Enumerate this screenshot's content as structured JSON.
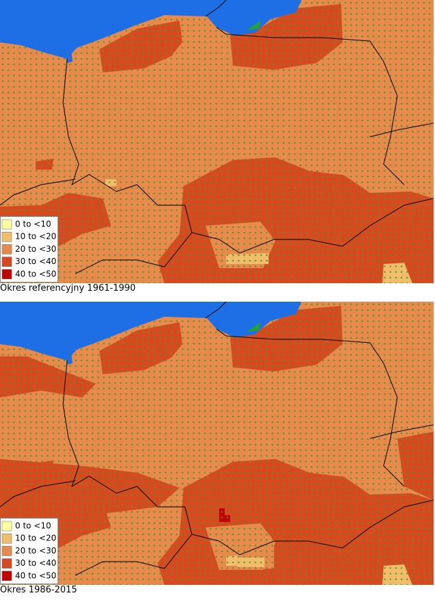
{
  "maps": [
    {
      "caption": "Okres referencyjny 1961-1990",
      "legend": [
        {
          "label": "0 to <10",
          "color": "#ffff9e"
        },
        {
          "label": "10 to <20",
          "color": "#f2bd6b"
        },
        {
          "label": "20 to <30",
          "color": "#e88a4c"
        },
        {
          "label": "30 to <40",
          "color": "#d9491f"
        },
        {
          "label": "40 to <50",
          "color": "#c40000"
        }
      ]
    },
    {
      "caption": "Okres 1986-2015",
      "legend": [
        {
          "label": "0 to <10",
          "color": "#ffff9e"
        },
        {
          "label": "10 to <20",
          "color": "#f2bd6b"
        },
        {
          "label": "20 to <30",
          "color": "#e88a4c"
        },
        {
          "label": "30 to <40",
          "color": "#d9491f"
        },
        {
          "label": "40 to <50",
          "color": "#c40000"
        }
      ]
    }
  ]
}
